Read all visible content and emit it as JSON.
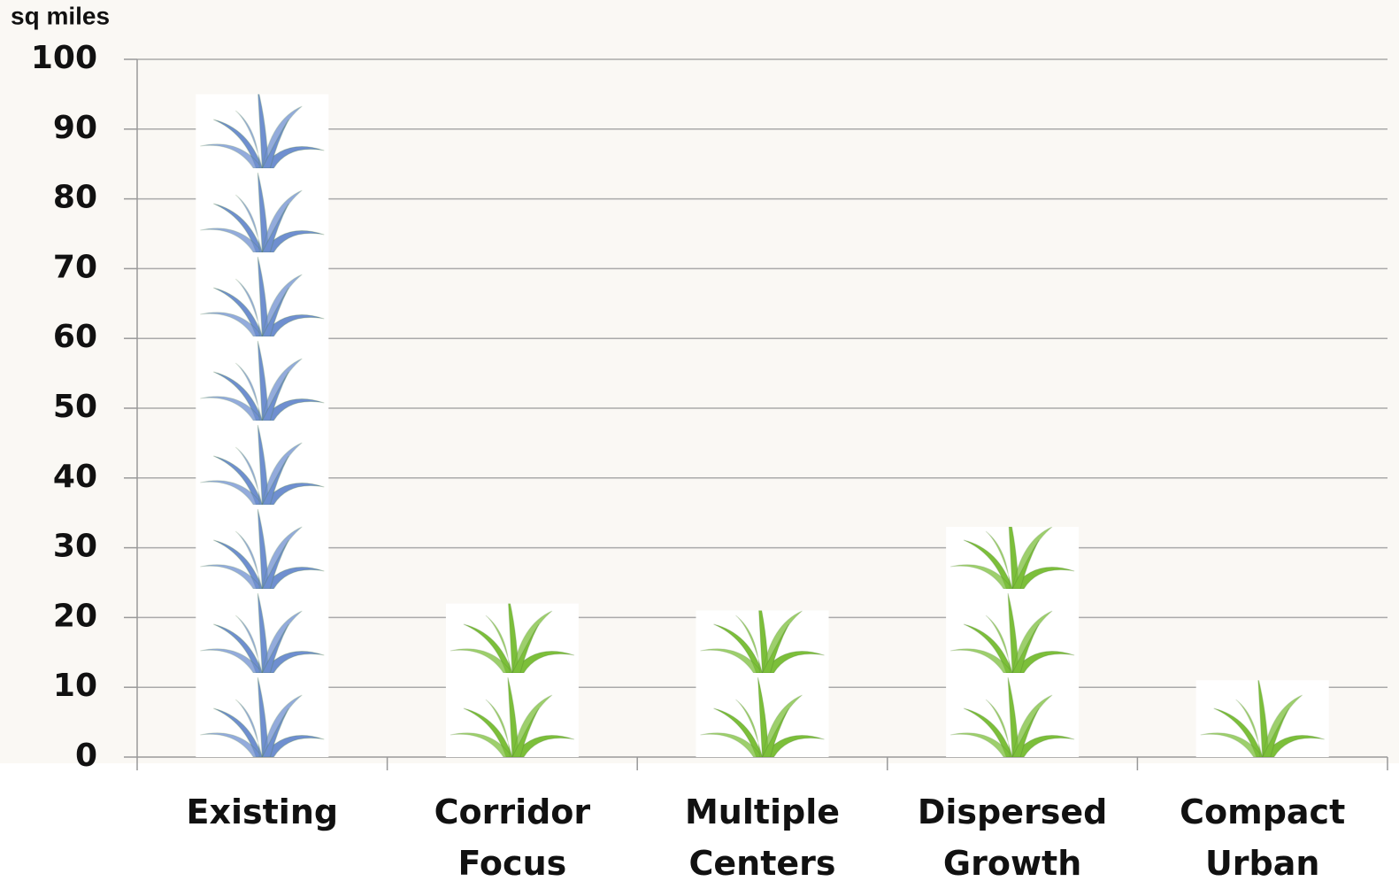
{
  "chart_data": {
    "type": "pictograph",
    "y_label": "sq miles",
    "categories": [
      "Existing",
      "Corridor Focus",
      "Multiple Centers",
      "Dispersed Growth",
      "Compact Urban"
    ],
    "values": [
      95,
      22,
      21,
      33,
      11
    ],
    "colors": [
      "#6f8fd0",
      "#7cbf3a",
      "#7cbf3a",
      "#7cbf3a",
      "#7cbf3a"
    ],
    "ylim": [
      0,
      100
    ],
    "yticks": [
      0,
      10,
      20,
      30,
      40,
      50,
      60,
      70,
      80,
      90,
      100
    ],
    "grid": true
  }
}
